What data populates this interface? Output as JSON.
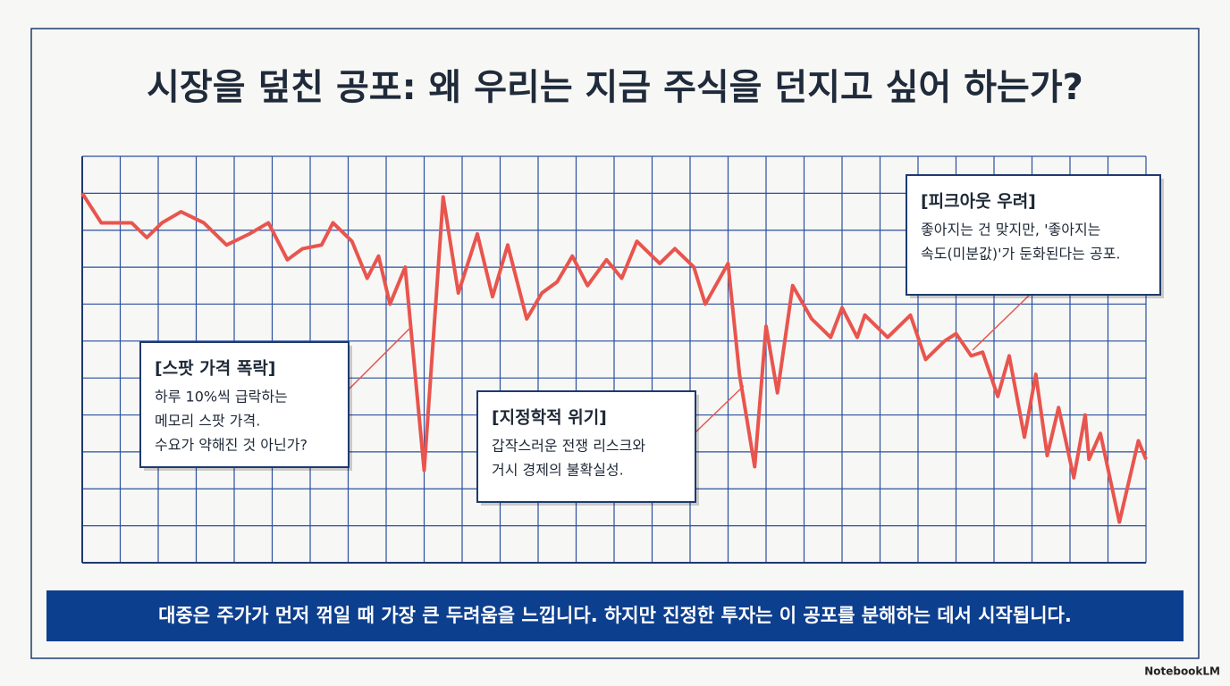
{
  "chart_data": {
    "type": "line",
    "title": "시장을 덮친 공포: 왜 우리는 지금 주식을 던지고 싶어 하는가?",
    "x": [
      0,
      0.5,
      1.3,
      1.7,
      2.1,
      2.6,
      3.2,
      3.8,
      4.4,
      4.9,
      5.4,
      5.8,
      6.3,
      6.6,
      7.1,
      7.5,
      7.8,
      8.1,
      8.5,
      9.0,
      9.5,
      9.9,
      10.4,
      10.8,
      11.2,
      11.7,
      12.1,
      12.5,
      12.9,
      13.3,
      13.8,
      14.2,
      14.6,
      15.2,
      15.6,
      16.1,
      16.4,
      17.0,
      17.3,
      17.7,
      18.0,
      18.3,
      18.7,
      19.2,
      19.7,
      20.0,
      20.4,
      20.6,
      21.2,
      21.8,
      22.2,
      22.7,
      23.0,
      23.4,
      23.7,
      24.1,
      24.4,
      24.8,
      25.1,
      25.4,
      25.7,
      26.1,
      26.4,
      26.5,
      26.8,
      27.3,
      27.8,
      28.0
    ],
    "series": [
      {
        "color": "#e8554e",
        "values": [
          10.0,
          9.2,
          9.2,
          8.8,
          9.2,
          9.5,
          9.2,
          8.6,
          8.9,
          9.2,
          8.2,
          8.5,
          8.6,
          9.2,
          8.7,
          7.7,
          8.3,
          7.0,
          8.0,
          2.5,
          9.9,
          7.3,
          8.9,
          7.2,
          8.6,
          6.6,
          7.3,
          7.6,
          8.3,
          7.5,
          8.2,
          7.7,
          8.7,
          8.1,
          8.5,
          8.0,
          7.0,
          8.1,
          5.1,
          2.6,
          6.4,
          4.6,
          7.5,
          6.6,
          6.1,
          6.9,
          6.1,
          6.7,
          6.1,
          6.7,
          5.5,
          6.0,
          6.2,
          5.6,
          5.7,
          4.5,
          5.6,
          3.4,
          5.1,
          2.9,
          4.2,
          2.3,
          4.0,
          2.8,
          3.5,
          1.1,
          3.3,
          2.8
        ]
      }
    ],
    "xlim": [
      0,
      28
    ],
    "xticks": [
      0,
      1,
      2,
      3,
      4,
      5,
      6,
      7,
      8,
      9,
      10,
      11,
      12,
      13,
      14,
      15,
      16,
      17,
      18,
      19,
      20,
      21,
      22,
      23,
      24,
      25,
      26,
      27,
      28
    ],
    "ylim": [
      0,
      11
    ],
    "yticks": [
      0,
      1,
      2,
      3,
      4,
      5,
      6,
      7,
      8,
      9,
      10,
      11
    ],
    "grid": true,
    "annotations": [
      {
        "title": "[스팟 가격 폭락]",
        "lines": [
          "하루 10%씩 급락하는",
          "메모리 스팟 가격.",
          "수요가 약해진 것 아닌가?"
        ]
      },
      {
        "title": "[지정학적 위기]",
        "lines": [
          "갑작스러운 전쟁 리스크와",
          "거시 경제의 불확실성."
        ]
      },
      {
        "title": "[피크아웃 우려]",
        "lines": [
          "좋아지는 건 맞지만, '좋아지는",
          "속도(미분값)'가 둔화된다는 공포."
        ]
      }
    ],
    "caption": "대중은 주가가 먼저 꺾일 때 가장 큰 두려움을 느낍니다. 하지만 진정한 투자는 이 공포를 분해하는 데서 시작됩니다."
  },
  "watermark": "NotebookLM"
}
